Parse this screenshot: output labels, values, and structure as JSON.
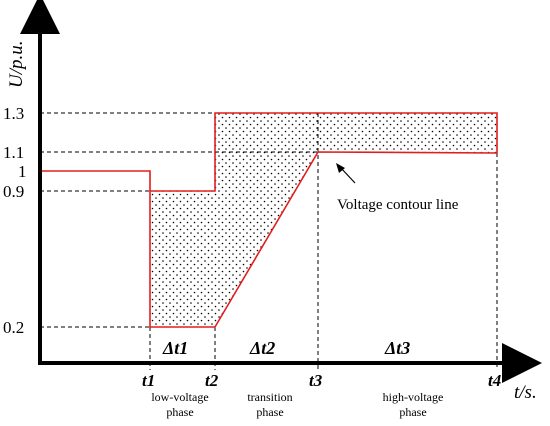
{
  "axes": {
    "y_label": "U/p.u.",
    "x_label": "t/s."
  },
  "y_ticks": [
    "1.3",
    "1.1",
    "1",
    "0.9",
    "0.2"
  ],
  "time_marks": [
    "t1",
    "t2",
    "t3",
    "t4"
  ],
  "intervals": [
    "Δt1",
    "Δt2",
    "Δt3"
  ],
  "phases": [
    {
      "line1": "low-voltage",
      "line2": "phase"
    },
    {
      "line1": "transition",
      "line2": "phase"
    },
    {
      "line1": "high-voltage",
      "line2": "phase"
    }
  ],
  "annotation": "Voltage contour line",
  "colors": {
    "contour": "#e01e1e",
    "axis": "#000000"
  }
}
